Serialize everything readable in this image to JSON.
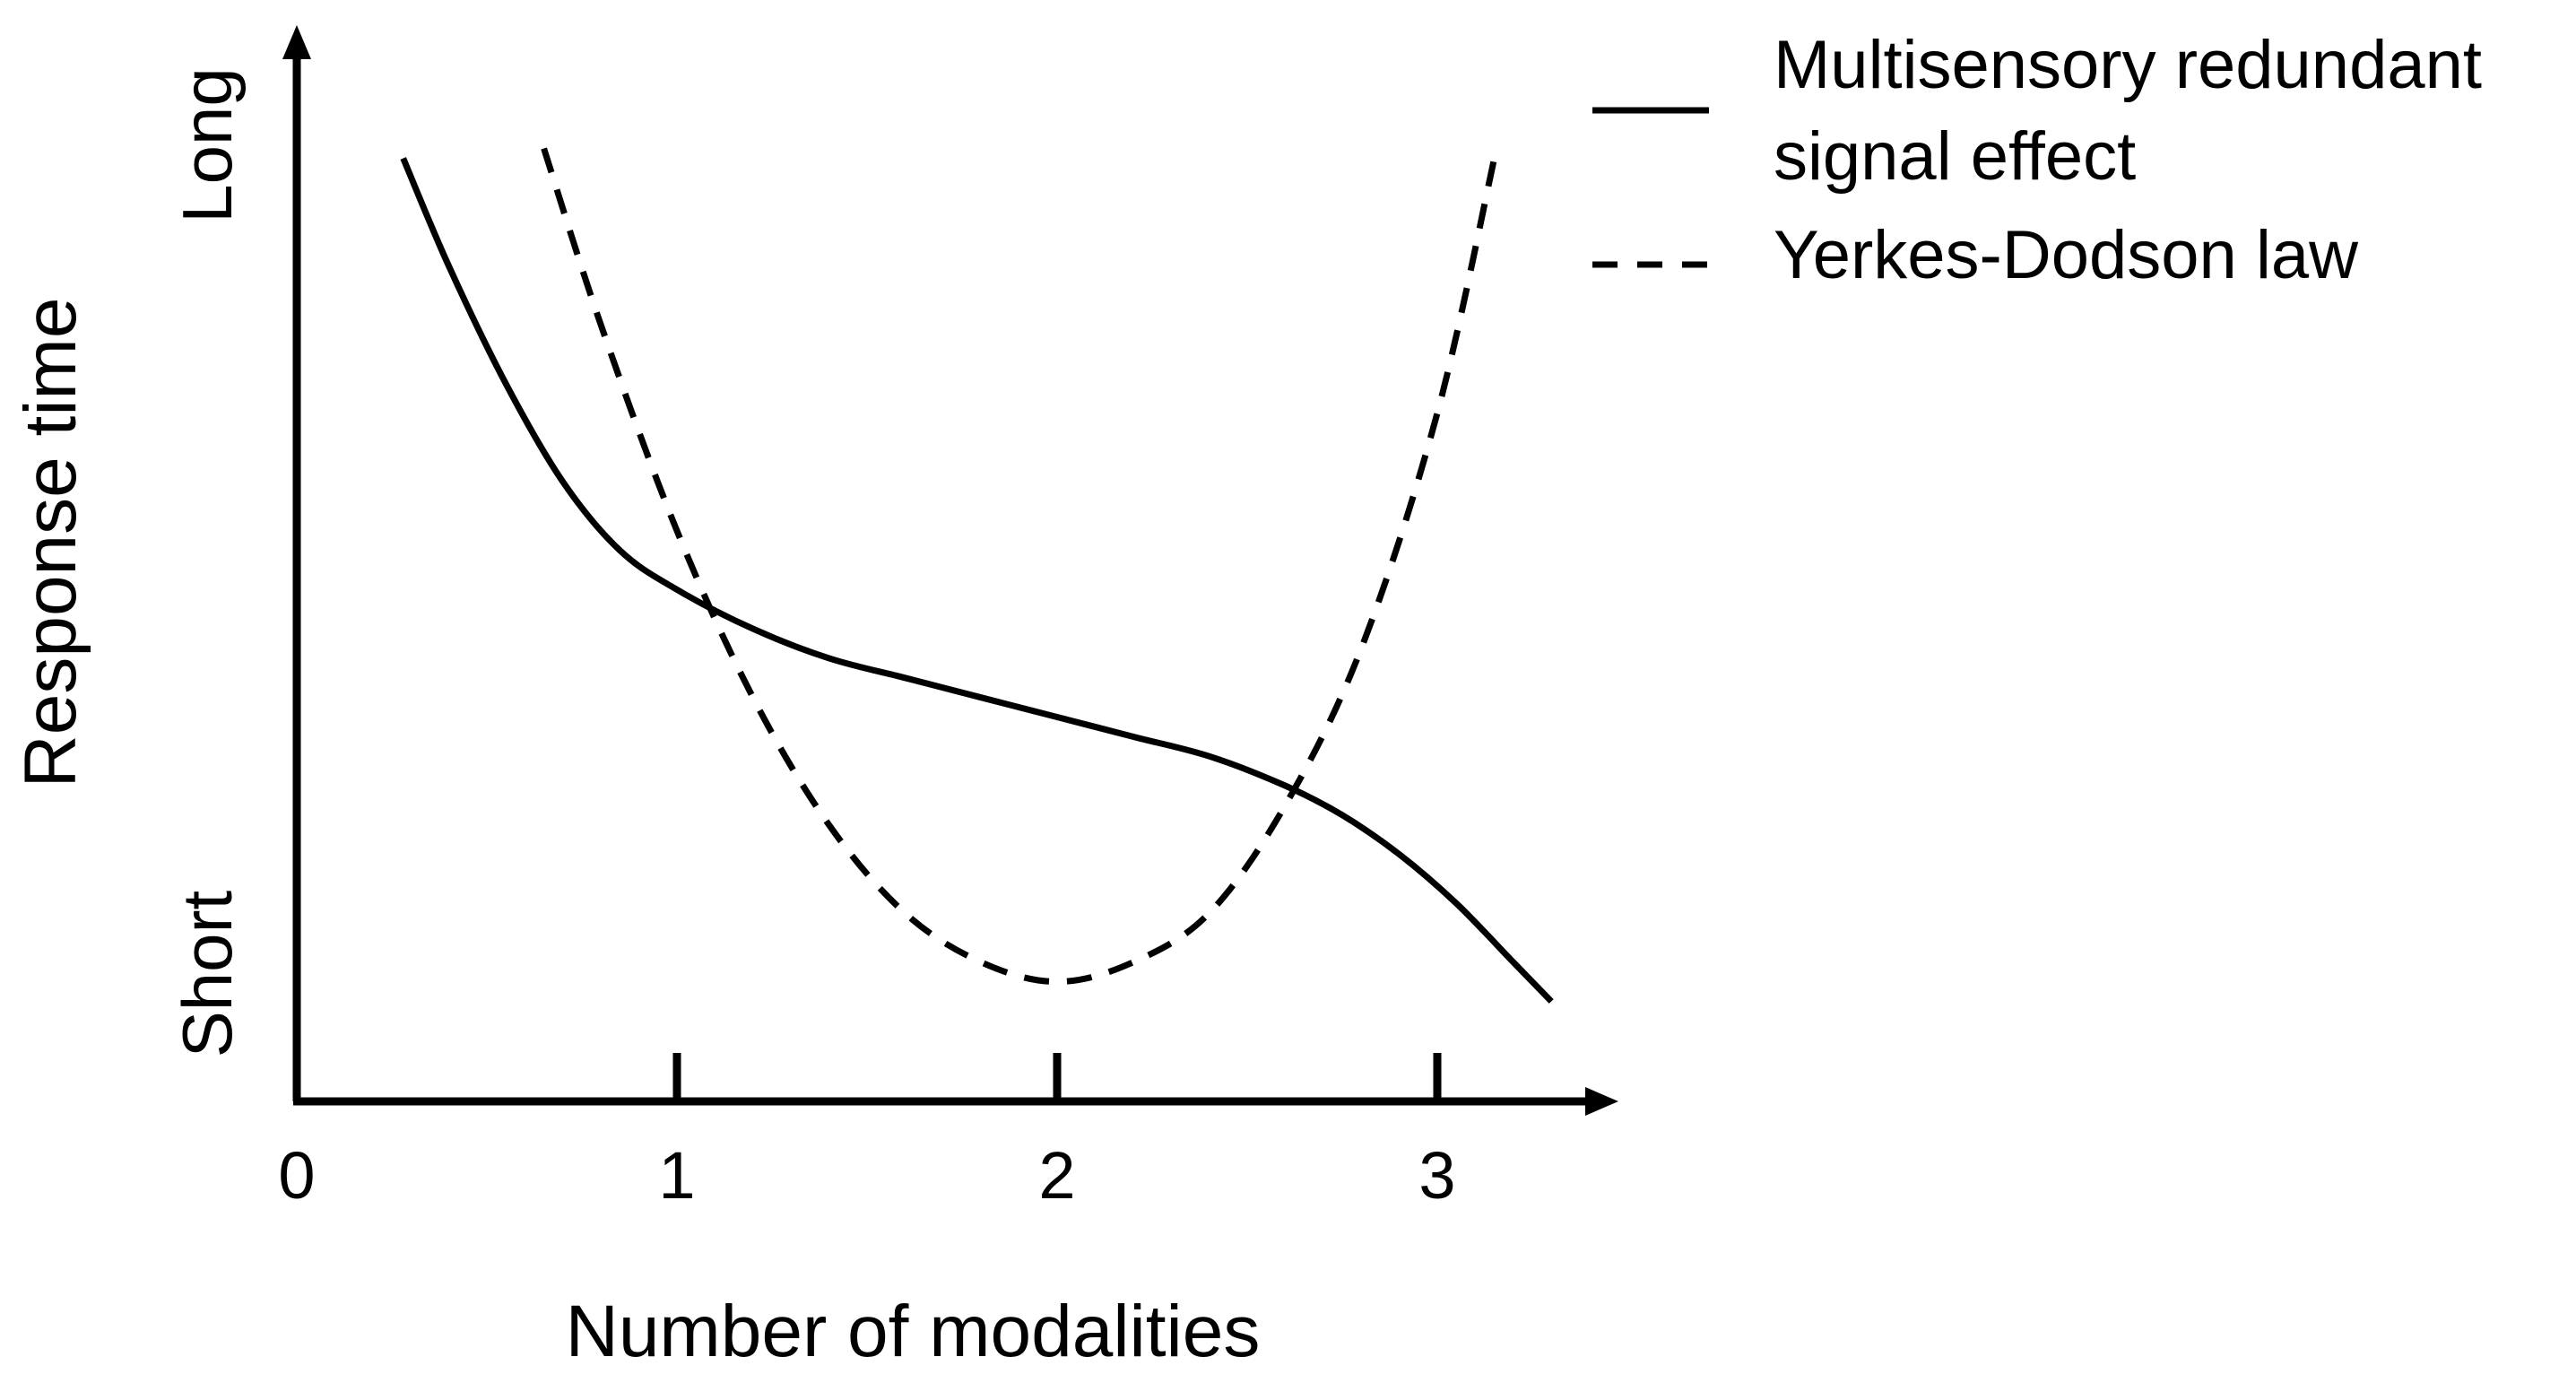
{
  "chart_data": {
    "type": "line",
    "title": "",
    "xlabel": "Number of modalities",
    "ylabel": "Response time",
    "xlim": [
      0,
      3.5
    ],
    "ylim": [
      0,
      1
    ],
    "x_ticks": [
      0,
      1,
      2,
      3
    ],
    "x_tick_labels": [
      "0",
      "1",
      "2",
      "3"
    ],
    "y_end_labels": {
      "low": "Short",
      "high": "Long"
    },
    "grid": false,
    "legend": {
      "position": "top-right"
    },
    "series": [
      {
        "name": "Multisensory redundant signal effect",
        "style": "solid",
        "color": "#000000",
        "x": [
          0.28,
          0.4,
          0.55,
          0.7,
          0.85,
          1.0,
          1.2,
          1.4,
          1.6,
          1.8,
          2.0,
          2.2,
          2.4,
          2.6,
          2.75,
          2.9,
          3.05,
          3.2,
          3.3
        ],
        "y": [
          0.93,
          0.82,
          0.7,
          0.6,
          0.53,
          0.49,
          0.45,
          0.42,
          0.4,
          0.38,
          0.36,
          0.34,
          0.32,
          0.29,
          0.26,
          0.22,
          0.17,
          0.11,
          0.07
        ]
      },
      {
        "name": "Yerkes-Dodson law",
        "style": "dashed",
        "color": "#000000",
        "x": [
          0.65,
          0.8,
          1.0,
          1.2,
          1.4,
          1.6,
          1.8,
          2.0,
          2.2,
          2.4,
          2.6,
          2.8,
          3.0,
          3.15
        ],
        "y": [
          0.94,
          0.76,
          0.55,
          0.38,
          0.25,
          0.16,
          0.11,
          0.09,
          0.11,
          0.16,
          0.27,
          0.43,
          0.67,
          0.93
        ]
      }
    ]
  }
}
